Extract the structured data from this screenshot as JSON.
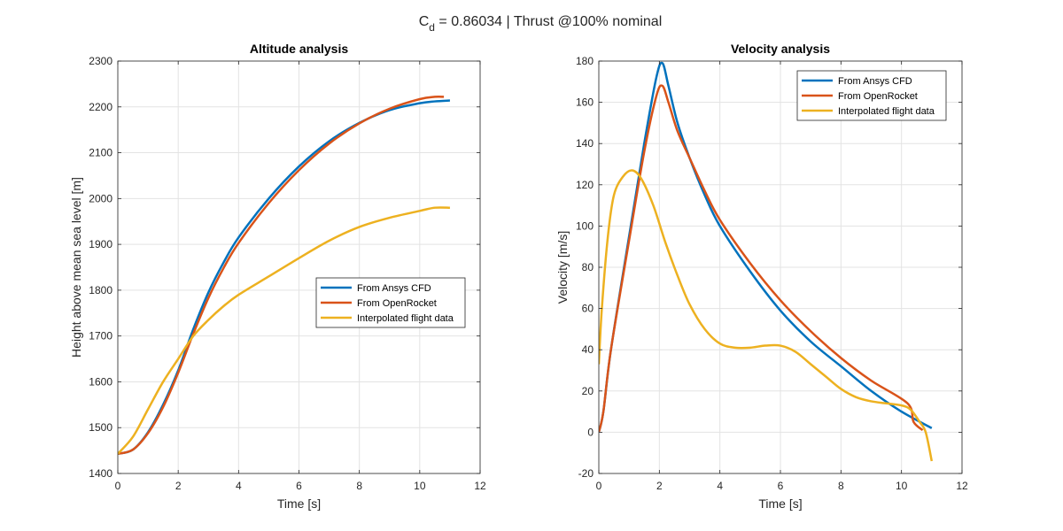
{
  "figure": {
    "suptitle_prefix": "C",
    "suptitle_subscript": "d",
    "suptitle_rest": " = 0.86034 | Thrust @100% nominal"
  },
  "colors": {
    "ansys": "#0072BD",
    "openrocket": "#D95319",
    "flight": "#EDB120",
    "grid": "#e3e3e3",
    "axis": "#262626"
  },
  "chart_data": [
    {
      "type": "line",
      "title": "Altitude analysis",
      "xlabel": "Time [s]",
      "ylabel": "Height above mean sea level [m]",
      "xlim": [
        0,
        12
      ],
      "ylim": [
        1400,
        2300
      ],
      "xticks": [
        0,
        2,
        4,
        6,
        8,
        10,
        12
      ],
      "yticks": [
        1400,
        1500,
        1600,
        1700,
        1800,
        1900,
        2000,
        2100,
        2200,
        2300
      ],
      "grid": true,
      "legend_position": "center-right",
      "series": [
        {
          "name": "From Ansys CFD",
          "color": "#0072BD",
          "x": [
            0,
            0.5,
            1,
            1.5,
            2,
            2.5,
            3,
            3.5,
            4,
            5,
            6,
            7,
            8,
            9,
            10,
            10.5,
            11
          ],
          "y": [
            1443,
            1452,
            1490,
            1550,
            1625,
            1715,
            1795,
            1860,
            1915,
            2000,
            2070,
            2125,
            2165,
            2193,
            2208,
            2212,
            2214
          ]
        },
        {
          "name": "From OpenRocket",
          "color": "#D95319",
          "x": [
            0,
            0.5,
            1,
            1.5,
            2,
            2.5,
            3,
            3.5,
            4,
            5,
            6,
            7,
            8,
            9,
            10,
            10.5,
            10.8
          ],
          "y": [
            1443,
            1452,
            1488,
            1545,
            1620,
            1705,
            1783,
            1848,
            1903,
            1990,
            2062,
            2120,
            2164,
            2196,
            2217,
            2222,
            2222
          ]
        },
        {
          "name": "Interpolated flight data",
          "color": "#EDB120",
          "x": [
            0,
            0.5,
            1,
            1.5,
            2,
            2.5,
            3,
            3.5,
            4,
            5,
            6,
            7,
            8,
            9,
            10,
            10.5,
            11
          ],
          "y": [
            1443,
            1480,
            1540,
            1600,
            1650,
            1700,
            1735,
            1765,
            1790,
            1830,
            1870,
            1908,
            1938,
            1958,
            1973,
            1980,
            1980
          ]
        }
      ]
    },
    {
      "type": "line",
      "title": "Velocity analysis",
      "xlabel": "Time [s]",
      "ylabel": "Velocity [m/s]",
      "xlim": [
        0,
        12
      ],
      "ylim": [
        -20,
        180
      ],
      "xticks": [
        0,
        2,
        4,
        6,
        8,
        10,
        12
      ],
      "yticks": [
        -20,
        0,
        20,
        40,
        60,
        80,
        100,
        120,
        140,
        160,
        180
      ],
      "grid": true,
      "legend_position": "top-right",
      "series": [
        {
          "name": "From Ansys CFD",
          "color": "#0072BD",
          "x": [
            0,
            0.15,
            0.4,
            1,
            1.5,
            1.9,
            2.1,
            2.3,
            2.6,
            3,
            3.5,
            4,
            5,
            6,
            7,
            8,
            9,
            10,
            11
          ],
          "y": [
            0,
            10,
            40,
            95,
            140,
            172,
            179,
            168,
            150,
            133,
            115,
            100,
            78,
            59,
            44,
            32,
            20,
            10,
            2
          ]
        },
        {
          "name": "From OpenRocket",
          "color": "#D95319",
          "x": [
            0,
            0.15,
            0.4,
            1,
            1.5,
            1.9,
            2.1,
            2.3,
            2.6,
            3,
            3.5,
            4,
            5,
            6,
            7,
            8,
            9,
            10.2,
            10.4,
            10.7
          ],
          "y": [
            0,
            10,
            40,
            93,
            136,
            163,
            168,
            160,
            146,
            133,
            117,
            103,
            82,
            64,
            49,
            36,
            25,
            14,
            5,
            1
          ]
        },
        {
          "name": "Interpolated flight data",
          "color": "#EDB120",
          "x": [
            0,
            0.1,
            0.3,
            0.5,
            0.8,
            1.1,
            1.4,
            1.8,
            2.2,
            2.6,
            3,
            3.5,
            4,
            4.5,
            5,
            5.5,
            6,
            6.5,
            7,
            7.5,
            8,
            8.5,
            9,
            9.5,
            10,
            10.3,
            10.6,
            10.8,
            11
          ],
          "y": [
            33,
            60,
            95,
            115,
            124,
            127,
            123,
            110,
            92,
            76,
            62,
            50,
            43,
            41,
            41,
            42,
            42,
            39,
            33,
            27,
            21,
            17,
            15,
            14,
            13,
            11,
            5,
            0,
            -14
          ]
        }
      ]
    }
  ]
}
